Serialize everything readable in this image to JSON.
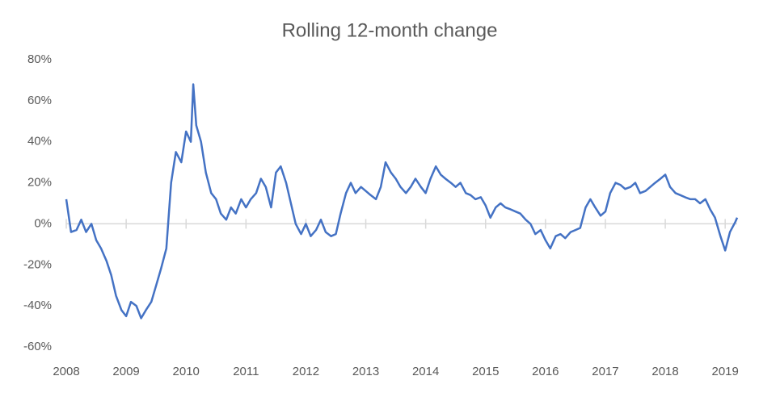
{
  "chart_data": {
    "type": "line",
    "title": "Rolling 12-month change",
    "x": [
      2008.0,
      2008.08,
      2008.17,
      2008.25,
      2008.33,
      2008.42,
      2008.5,
      2008.58,
      2008.67,
      2008.75,
      2008.83,
      2008.92,
      2009.0,
      2009.08,
      2009.17,
      2009.25,
      2009.33,
      2009.42,
      2009.5,
      2009.58,
      2009.67,
      2009.75,
      2009.83,
      2009.92,
      2010.0,
      2010.08,
      2010.12,
      2010.17,
      2010.25,
      2010.33,
      2010.42,
      2010.5,
      2010.58,
      2010.67,
      2010.75,
      2010.83,
      2010.92,
      2011.0,
      2011.08,
      2011.17,
      2011.25,
      2011.33,
      2011.42,
      2011.5,
      2011.58,
      2011.67,
      2011.75,
      2011.83,
      2011.92,
      2012.0,
      2012.08,
      2012.17,
      2012.25,
      2012.33,
      2012.42,
      2012.5,
      2012.58,
      2012.67,
      2012.75,
      2012.83,
      2012.92,
      2013.0,
      2013.08,
      2013.17,
      2013.25,
      2013.33,
      2013.42,
      2013.5,
      2013.58,
      2013.67,
      2013.75,
      2013.83,
      2013.92,
      2014.0,
      2014.08,
      2014.17,
      2014.25,
      2014.33,
      2014.42,
      2014.5,
      2014.58,
      2014.67,
      2014.75,
      2014.83,
      2014.92,
      2015.0,
      2015.08,
      2015.17,
      2015.25,
      2015.33,
      2015.42,
      2015.5,
      2015.58,
      2015.67,
      2015.75,
      2015.83,
      2015.92,
      2016.0,
      2016.08,
      2016.17,
      2016.25,
      2016.33,
      2016.42,
      2016.5,
      2016.58,
      2016.67,
      2016.75,
      2016.83,
      2016.92,
      2017.0,
      2017.08,
      2017.17,
      2017.25,
      2017.33,
      2017.42,
      2017.5,
      2017.58,
      2017.67,
      2017.75,
      2017.83,
      2017.92,
      2018.0,
      2018.08,
      2018.17,
      2018.25,
      2018.33,
      2018.42,
      2018.5,
      2018.58,
      2018.67,
      2018.75,
      2018.83,
      2018.92,
      2019.0,
      2019.08,
      2019.17,
      2019.2
    ],
    "series": [
      {
        "color": "#4472c4",
        "values": [
          12,
          -4,
          -3,
          2,
          -4,
          0,
          -8,
          -12,
          -18,
          -25,
          -35,
          -42,
          -45,
          -38,
          -40,
          -46,
          -42,
          -38,
          -30,
          -22,
          -12,
          20,
          35,
          30,
          45,
          40,
          68,
          48,
          40,
          25,
          15,
          12,
          5,
          2,
          8,
          5,
          12,
          8,
          12,
          15,
          22,
          18,
          8,
          25,
          28,
          20,
          10,
          0,
          -5,
          0,
          -6,
          -3,
          2,
          -4,
          -6,
          -5,
          5,
          15,
          20,
          15,
          18,
          16,
          14,
          12,
          18,
          30,
          25,
          22,
          18,
          15,
          18,
          22,
          18,
          15,
          22,
          28,
          24,
          22,
          20,
          18,
          20,
          15,
          14,
          12,
          13,
          9,
          3,
          8,
          10,
          8,
          7,
          6,
          5,
          2,
          0,
          -5,
          -3,
          -8,
          -12,
          -6,
          -5,
          -7,
          -4,
          -3,
          -2,
          8,
          12,
          8,
          4,
          6,
          15,
          20,
          19,
          17,
          18,
          20,
          15,
          16,
          18,
          20,
          22,
          24,
          18,
          15,
          14,
          13,
          12,
          12,
          10,
          12,
          7,
          3,
          -6,
          -13,
          -4,
          1,
          3
        ]
      }
    ],
    "xlim": [
      2008,
      2019.2
    ],
    "xticks": [
      2008,
      2009,
      2010,
      2011,
      2012,
      2013,
      2014,
      2015,
      2016,
      2017,
      2018,
      2019
    ],
    "ylim": [
      -60,
      80
    ],
    "yticks": [
      {
        "value": -60,
        "label": "-60%"
      },
      {
        "value": -40,
        "label": "-40%"
      },
      {
        "value": -20,
        "label": "-20%"
      },
      {
        "value": 0,
        "label": "0%"
      },
      {
        "value": 20,
        "label": "20%"
      },
      {
        "value": 40,
        "label": "40%"
      },
      {
        "value": 60,
        "label": "60%"
      },
      {
        "value": 80,
        "label": "80%"
      }
    ]
  }
}
